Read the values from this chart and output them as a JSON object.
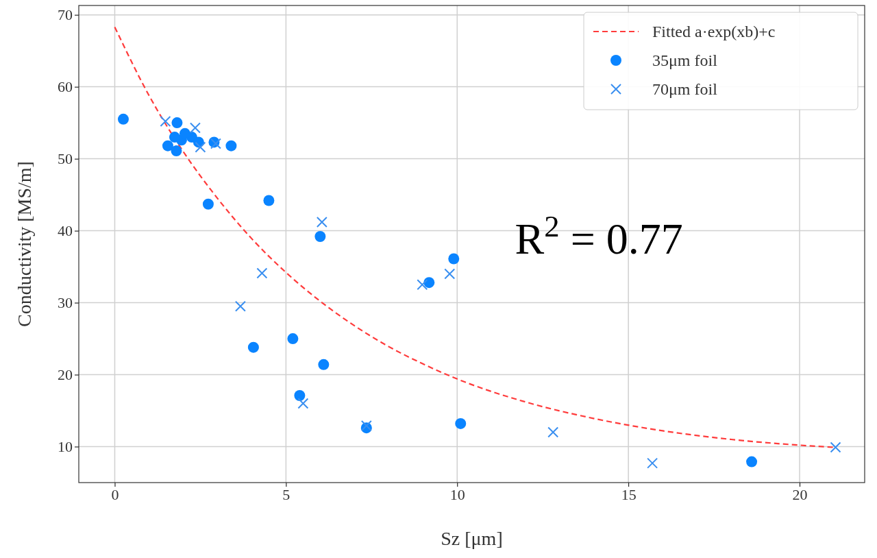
{
  "chart_data": {
    "type": "scatter",
    "xlabel": "Sz [μm]",
    "ylabel": "Conductivity [MS/m]",
    "xlim": [
      -1.05,
      21.9
    ],
    "ylim": [
      5,
      71.3
    ],
    "xticks": [
      0,
      5,
      10,
      15,
      20
    ],
    "yticks": [
      10,
      20,
      30,
      40,
      50,
      60,
      70
    ],
    "grid": true,
    "legend": "top right",
    "annotations": [
      "R$^{2}$ = 0.77"
    ],
    "series": [
      {
        "name": "Fitted a·exp(xb)+c",
        "type": "line",
        "color": "#ff3b3b",
        "line_style": "dashed",
        "marker": "none",
        "x": [
          0,
          1,
          2,
          3,
          4,
          5,
          6,
          7,
          8,
          9,
          10,
          12,
          14,
          16,
          18,
          20,
          21
        ],
        "values": [
          68.3,
          58.8,
          51.0,
          44.5,
          38.9,
          34.2,
          30.2,
          26.8,
          23.9,
          21.5,
          19.4,
          16.2,
          13.9,
          12.2,
          11.0,
          10.2,
          9.9
        ]
      },
      {
        "name": "35μm foil",
        "type": "scatter",
        "color": "#0a84ff",
        "marker": "circle",
        "x": [
          0.25,
          1.82,
          1.55,
          1.8,
          1.95,
          2.25,
          2.45,
          2.05,
          1.75,
          2.9,
          3.4,
          2.73,
          4.5,
          6.0,
          9.9,
          9.18,
          4.05,
          5.2,
          6.1,
          5.4,
          7.35,
          10.1,
          18.6
        ],
        "values": [
          55.5,
          55.0,
          51.8,
          51.1,
          52.6,
          53.0,
          52.3,
          53.5,
          53.0,
          52.3,
          51.8,
          43.7,
          44.2,
          39.2,
          36.1,
          32.8,
          23.8,
          25.0,
          21.4,
          17.1,
          12.6,
          13.2,
          7.9
        ]
      },
      {
        "name": "70μm foil",
        "type": "scatter",
        "color": "#3a8ff0",
        "marker": "cross",
        "x": [
          1.48,
          2.35,
          2.95,
          2.5,
          6.05,
          4.3,
          3.67,
          8.98,
          9.78,
          5.5,
          7.35,
          12.8,
          15.7,
          21.05
        ],
        "values": [
          55.2,
          54.3,
          52.1,
          51.6,
          41.2,
          34.1,
          29.5,
          32.5,
          34.0,
          16.0,
          12.9,
          12.0,
          7.7,
          9.9
        ]
      }
    ]
  }
}
